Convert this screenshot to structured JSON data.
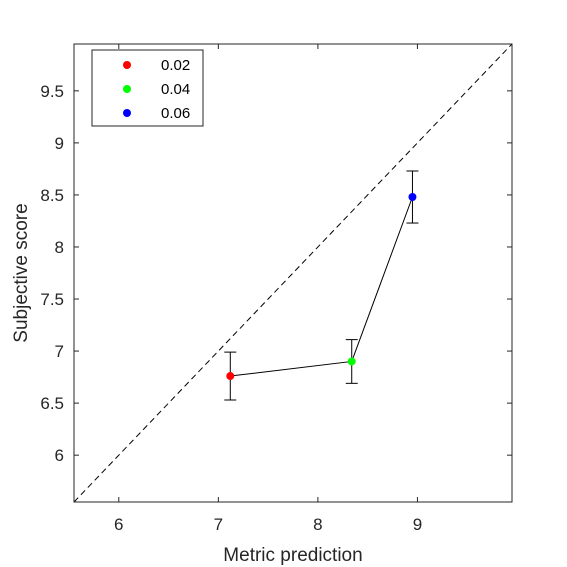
{
  "chart_data": {
    "type": "scatter",
    "title": "",
    "xlabel": "Metric prediction",
    "ylabel": "Subjective score",
    "xlim": [
      5.55,
      9.95
    ],
    "ylim": [
      5.55,
      9.95
    ],
    "xticks": [
      "6",
      "7",
      "8",
      "9"
    ],
    "xtick_values": [
      6,
      7,
      8,
      9
    ],
    "yticks": [
      "6",
      "6.5",
      "7",
      "7.5",
      "8",
      "8.5",
      "9",
      "9.5"
    ],
    "ytick_values": [
      6,
      6.5,
      7,
      7.5,
      8,
      8.5,
      9,
      9.5
    ],
    "grid": false,
    "legend_position": "top-left",
    "reference_line": "y = x (dashed)",
    "connecting_line": true,
    "series": [
      {
        "name": "0.02",
        "color": "#ff0000",
        "x": 7.12,
        "y": 6.76,
        "err_low": 6.53,
        "err_high": 6.99
      },
      {
        "name": "0.04",
        "color": "#00ff00",
        "x": 8.34,
        "y": 6.9,
        "err_low": 6.69,
        "err_high": 7.11
      },
      {
        "name": "0.06",
        "color": "#0000ff",
        "x": 8.95,
        "y": 8.48,
        "err_low": 8.23,
        "err_high": 8.73
      }
    ]
  }
}
